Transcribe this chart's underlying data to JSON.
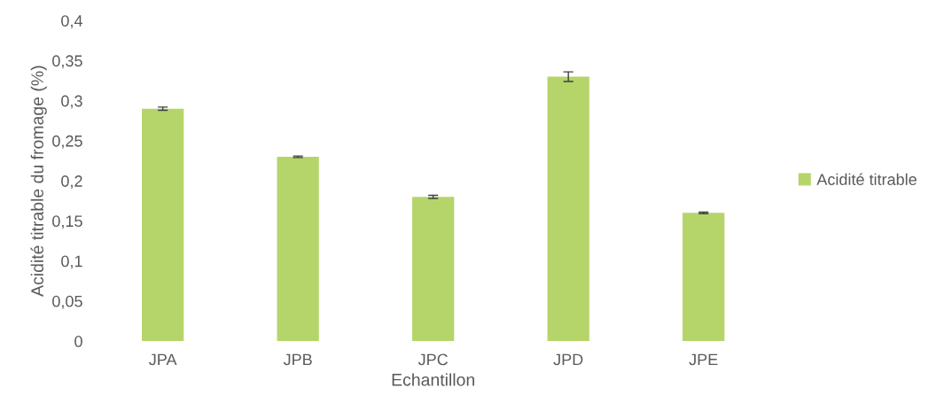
{
  "chart_data": {
    "type": "bar",
    "xlabel": "Echantillon",
    "ylabel": "Acidité titrable du fromage (%)",
    "categories": [
      "JPA",
      "JPB",
      "JPC",
      "JPD",
      "JPE"
    ],
    "series": [
      {
        "name": "Acidité titrable",
        "color": "#b5d56a",
        "values": [
          0.29,
          0.23,
          0.18,
          0.33,
          0.16
        ],
        "errors": [
          0.002,
          0.001,
          0.002,
          0.006,
          0.001
        ]
      }
    ],
    "ylim": [
      0,
      0.4
    ],
    "yticks": [
      0,
      {
        "value": 0.05,
        "label": "0,05"
      },
      {
        "value": 0.1,
        "label": "0,1"
      },
      {
        "value": 0.15,
        "label": "0,15"
      },
      {
        "value": 0.2,
        "label": "0,2"
      },
      {
        "value": 0.25,
        "label": "0,25"
      },
      {
        "value": 0.3,
        "label": "0,3"
      },
      {
        "value": 0.35,
        "label": "0,35"
      },
      {
        "value": 0.4,
        "label": "0,4"
      }
    ],
    "legend": "right",
    "grid": false
  }
}
